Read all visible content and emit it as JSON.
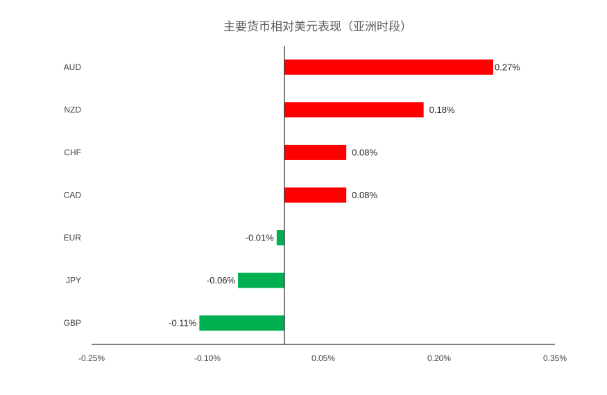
{
  "chart_data": {
    "type": "bar",
    "orientation": "horizontal",
    "title": "主要货币相对美元表现（亚洲时段）",
    "categories": [
      "AUD",
      "NZD",
      "CHF",
      "CAD",
      "EUR",
      "JPY",
      "GBP"
    ],
    "values": [
      0.27,
      0.18,
      0.08,
      0.08,
      -0.01,
      -0.06,
      -0.11
    ],
    "value_labels": [
      "0.27%",
      "0.18%",
      "0.08%",
      "0.08%",
      "-0.01%",
      "-0.06%",
      "-0.11%"
    ],
    "xlim": [
      -0.25,
      0.35
    ],
    "xticks": [
      -0.25,
      -0.1,
      0.05,
      0.2,
      0.35
    ],
    "xtick_labels": [
      "-0.25%",
      "-0.10%",
      "0.05%",
      "0.20%",
      "0.35%"
    ],
    "colors": {
      "positive": "#ff0000",
      "negative": "#00b050",
      "axis": "#000000"
    },
    "grid": false,
    "legend": "none"
  }
}
